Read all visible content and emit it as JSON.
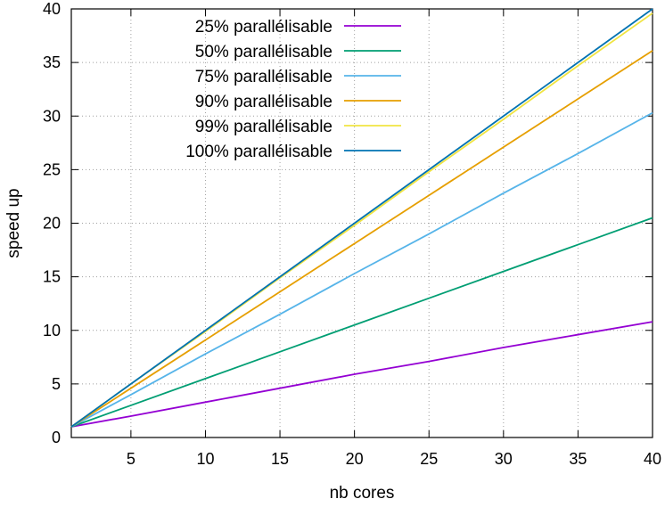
{
  "chart_data": {
    "type": "line",
    "title": "",
    "xlabel": "nb cores",
    "ylabel": "speed up",
    "xlim": [
      1,
      40
    ],
    "ylim": [
      0,
      40
    ],
    "xticks": [
      5,
      10,
      15,
      20,
      25,
      30,
      35,
      40
    ],
    "yticks": [
      0,
      5,
      10,
      15,
      20,
      25,
      30,
      35,
      40
    ],
    "grid": true,
    "legend_position": "top-left",
    "x": [
      1,
      5,
      10,
      15,
      20,
      25,
      30,
      35,
      40
    ],
    "series": [
      {
        "name": "25% parallélisable",
        "color": "#9400d3",
        "values": [
          1,
          2.0,
          3.3,
          4.6,
          5.9,
          7.1,
          8.4,
          9.6,
          10.8
        ]
      },
      {
        "name": "50% parallélisable",
        "color": "#009e73",
        "values": [
          1,
          3.0,
          5.5,
          8.0,
          10.5,
          13.0,
          15.5,
          18.0,
          20.5
        ]
      },
      {
        "name": "75% parallélisable",
        "color": "#56b4e9",
        "values": [
          1,
          4.0,
          7.8,
          11.5,
          15.3,
          19.0,
          22.8,
          26.5,
          30.3
        ]
      },
      {
        "name": "90% parallélisable",
        "color": "#e69f00",
        "values": [
          1,
          4.6,
          9.1,
          13.6,
          18.1,
          22.6,
          27.1,
          31.6,
          36.1
        ]
      },
      {
        "name": "99% parallélisable",
        "color": "#f0e442",
        "values": [
          1,
          5.0,
          9.9,
          14.9,
          19.8,
          24.8,
          29.7,
          34.7,
          39.6
        ]
      },
      {
        "name": "100% parallélisable",
        "color": "#0072b2",
        "values": [
          1,
          5.0,
          10.0,
          15.0,
          20.0,
          25.0,
          30.0,
          35.0,
          40.0
        ]
      }
    ]
  }
}
